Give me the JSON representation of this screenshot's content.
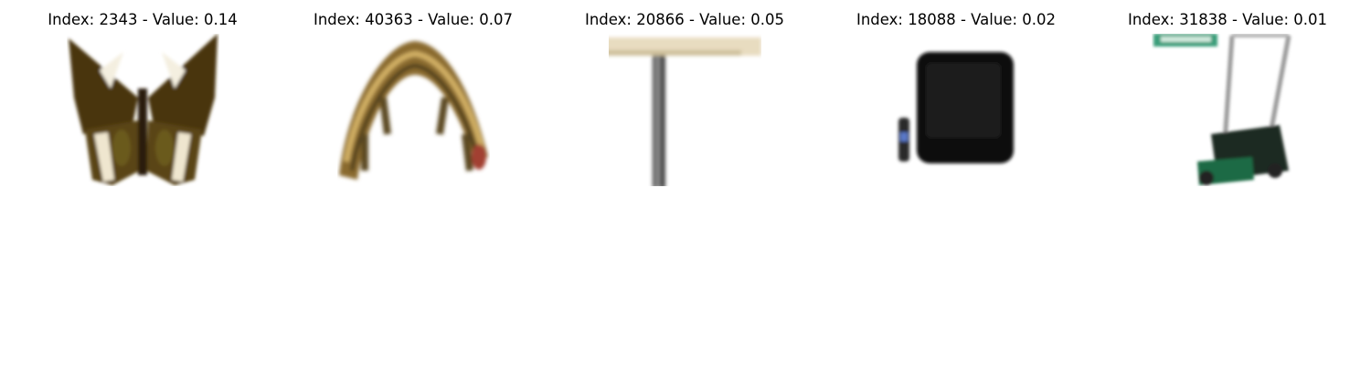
{
  "panels": [
    {
      "title": "Index: 2343 - Value: 0.14",
      "image": "butterfly"
    },
    {
      "title": "Index: 40363 - Value: 0.07",
      "image": "caterpillar"
    },
    {
      "title": "Index: 20866 - Value: 0.05",
      "image": "table"
    },
    {
      "title": "Index: 18088 - Value: 0.02",
      "image": "television"
    },
    {
      "title": "Index: 31838 - Value: 0.01",
      "image": "lawn-mower"
    }
  ]
}
